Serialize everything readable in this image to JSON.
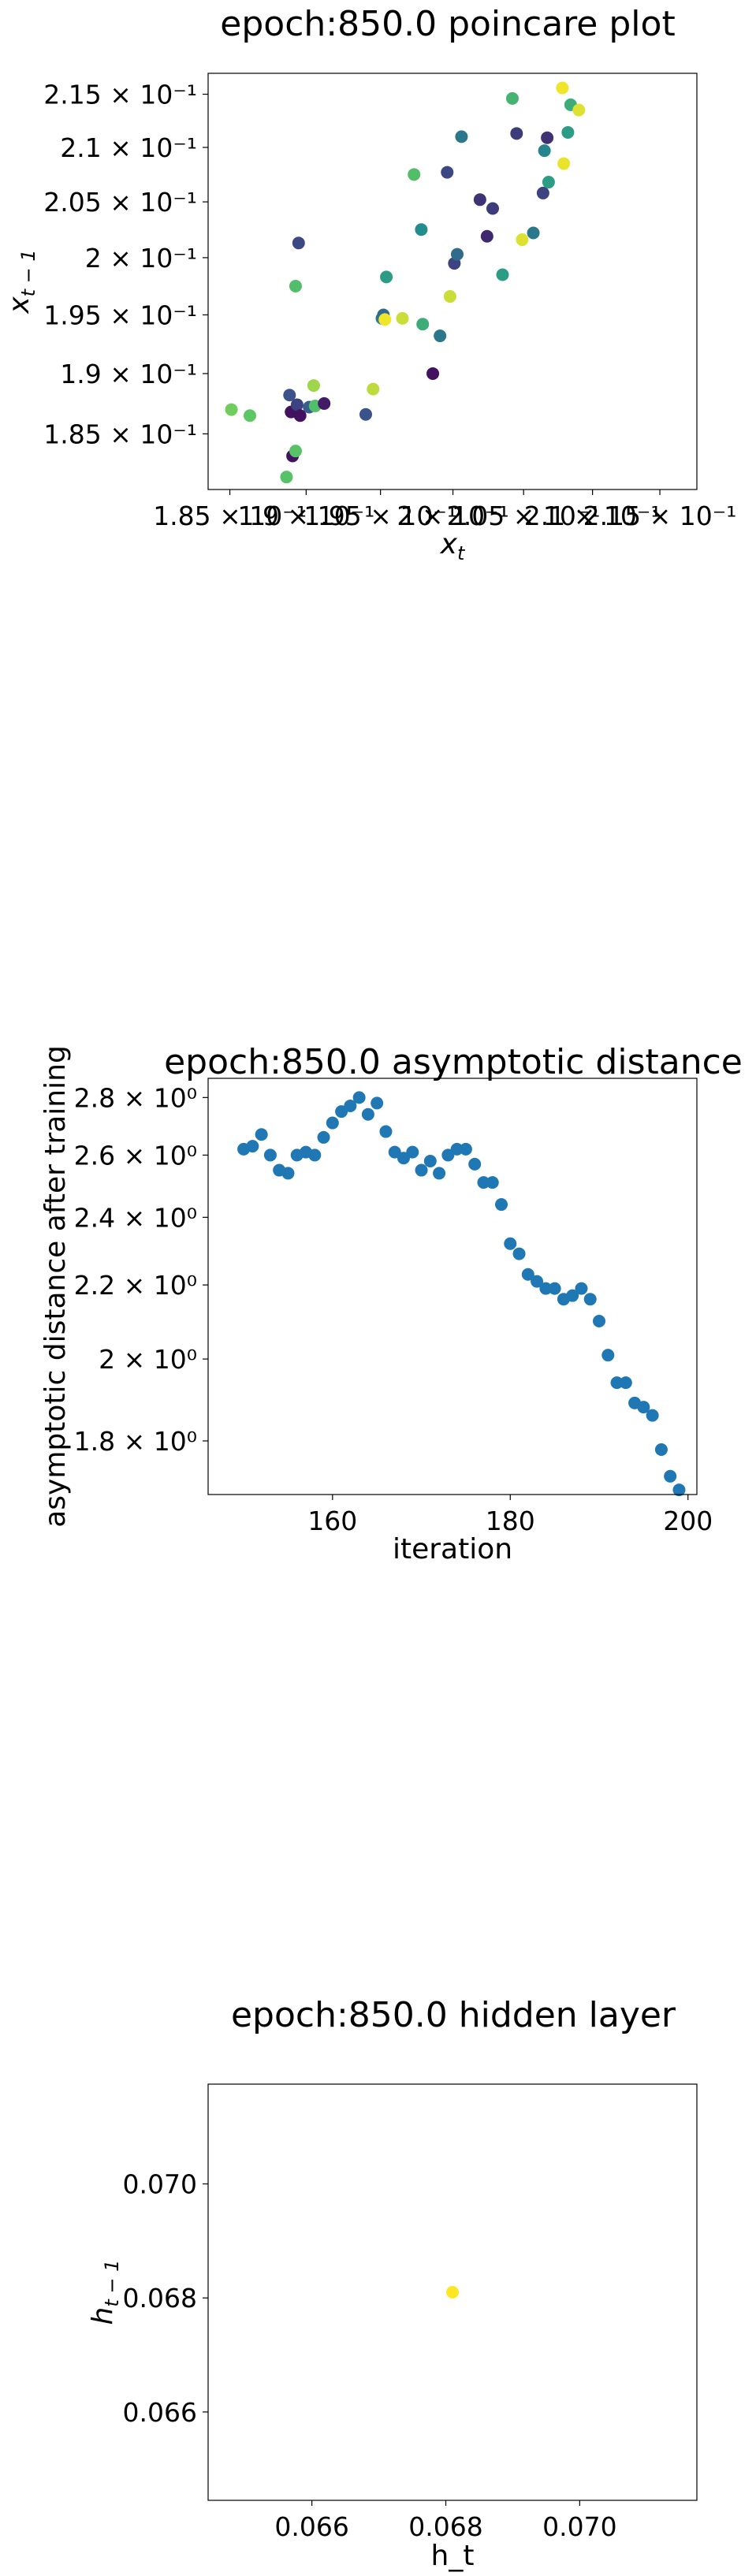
{
  "chart_data": [
    {
      "type": "scatter",
      "title": "epoch:850.0 poincare plot",
      "xlabel": "x_t",
      "ylabel": "x_{t-1}",
      "xscale": "log",
      "yscale": "log",
      "xlim": [
        0.1836,
        0.2178
      ],
      "ylim": [
        0.1805,
        0.217
      ],
      "x_ticks": [
        {
          "value": 0.185,
          "label": "1.85 × 10⁻¹"
        },
        {
          "value": 0.19,
          "label": "1.9 × 10⁻¹"
        },
        {
          "value": 0.195,
          "label": "1.95 × 10⁻¹"
        },
        {
          "value": 0.2,
          "label": "2 × 10⁻¹"
        },
        {
          "value": 0.205,
          "label": "2.05 × 10⁻¹"
        },
        {
          "value": 0.21,
          "label": "2.1 × 10⁻¹"
        },
        {
          "value": 0.215,
          "label": "2.15 × 10⁻¹"
        }
      ],
      "y_ticks": [
        {
          "value": 0.185,
          "label": "1.85 × 10⁻¹"
        },
        {
          "value": 0.19,
          "label": "1.9 × 10⁻¹"
        },
        {
          "value": 0.195,
          "label": "1.95 × 10⁻¹"
        },
        {
          "value": 0.2,
          "label": "2 × 10⁻¹"
        },
        {
          "value": 0.205,
          "label": "2.05 × 10⁻¹"
        },
        {
          "value": 0.21,
          "label": "2.1 × 10⁻¹"
        },
        {
          "value": 0.215,
          "label": "2.15 × 10⁻¹"
        }
      ],
      "colormap": "viridis",
      "points": [
        {
          "x": 0.1851,
          "y": 0.187,
          "c": 0.78
        },
        {
          "x": 0.1863,
          "y": 0.1865,
          "c": 0.74
        },
        {
          "x": 0.1887,
          "y": 0.1815,
          "c": 0.72
        },
        {
          "x": 0.189,
          "y": 0.1868,
          "c": 0.05
        },
        {
          "x": 0.1889,
          "y": 0.1882,
          "c": 0.25
        },
        {
          "x": 0.1891,
          "y": 0.1832,
          "c": 0.05
        },
        {
          "x": 0.1893,
          "y": 0.1836,
          "c": 0.72
        },
        {
          "x": 0.1893,
          "y": 0.1975,
          "c": 0.7
        },
        {
          "x": 0.1895,
          "y": 0.2013,
          "c": 0.22
        },
        {
          "x": 0.1894,
          "y": 0.1874,
          "c": 0.2
        },
        {
          "x": 0.1896,
          "y": 0.1865,
          "c": 0.05
        },
        {
          "x": 0.1902,
          "y": 0.1872,
          "c": 0.3
        },
        {
          "x": 0.1905,
          "y": 0.189,
          "c": 0.85
        },
        {
          "x": 0.1906,
          "y": 0.1873,
          "c": 0.7
        },
        {
          "x": 0.1912,
          "y": 0.1875,
          "c": 0.08
        },
        {
          "x": 0.194,
          "y": 0.1866,
          "c": 0.25
        },
        {
          "x": 0.1945,
          "y": 0.1887,
          "c": 0.9
        },
        {
          "x": 0.1951,
          "y": 0.1947,
          "c": 0.4
        },
        {
          "x": 0.1952,
          "y": 0.195,
          "c": 0.35
        },
        {
          "x": 0.1953,
          "y": 0.1946,
          "c": 0.98
        },
        {
          "x": 0.1954,
          "y": 0.1983,
          "c": 0.55
        },
        {
          "x": 0.1965,
          "y": 0.1947,
          "c": 0.92
        },
        {
          "x": 0.1973,
          "y": 0.2075,
          "c": 0.7
        },
        {
          "x": 0.1978,
          "y": 0.2025,
          "c": 0.48
        },
        {
          "x": 0.1979,
          "y": 0.1942,
          "c": 0.62
        },
        {
          "x": 0.1986,
          "y": 0.19,
          "c": 0.05
        },
        {
          "x": 0.1991,
          "y": 0.1932,
          "c": 0.4
        },
        {
          "x": 0.1996,
          "y": 0.2077,
          "c": 0.22
        },
        {
          "x": 0.1998,
          "y": 0.1966,
          "c": 0.92
        },
        {
          "x": 0.2001,
          "y": 0.1995,
          "c": 0.2
        },
        {
          "x": 0.2003,
          "y": 0.2003,
          "c": 0.35
        },
        {
          "x": 0.2006,
          "y": 0.211,
          "c": 0.4
        },
        {
          "x": 0.2019,
          "y": 0.2052,
          "c": 0.15
        },
        {
          "x": 0.2024,
          "y": 0.2019,
          "c": 0.12
        },
        {
          "x": 0.2028,
          "y": 0.2044,
          "c": 0.18
        },
        {
          "x": 0.2035,
          "y": 0.1985,
          "c": 0.55
        },
        {
          "x": 0.2042,
          "y": 0.2146,
          "c": 0.65
        },
        {
          "x": 0.2045,
          "y": 0.2113,
          "c": 0.18
        },
        {
          "x": 0.2049,
          "y": 0.2016,
          "c": 0.95
        },
        {
          "x": 0.2057,
          "y": 0.2022,
          "c": 0.4
        },
        {
          "x": 0.2064,
          "y": 0.2058,
          "c": 0.2
        },
        {
          "x": 0.2065,
          "y": 0.2097,
          "c": 0.45
        },
        {
          "x": 0.2067,
          "y": 0.2109,
          "c": 0.15
        },
        {
          "x": 0.2068,
          "y": 0.2068,
          "c": 0.55
        },
        {
          "x": 0.2078,
          "y": 0.2156,
          "c": 0.98
        },
        {
          "x": 0.2079,
          "y": 0.2085,
          "c": 0.97
        },
        {
          "x": 0.2082,
          "y": 0.2114,
          "c": 0.55
        },
        {
          "x": 0.2084,
          "y": 0.214,
          "c": 0.62
        },
        {
          "x": 0.209,
          "y": 0.2135,
          "c": 0.95
        }
      ]
    },
    {
      "type": "scatter",
      "title": "epoch:850.0 asymptotic distance",
      "xlabel": "iteration",
      "ylabel": "asymptotic distance after training",
      "yscale": "log",
      "xlim": [
        146,
        201
      ],
      "ylim": [
        1.68,
        2.87
      ],
      "x_ticks": [
        {
          "value": 160,
          "label": "160"
        },
        {
          "value": 180,
          "label": "180"
        },
        {
          "value": 200,
          "label": "200"
        }
      ],
      "y_ticks": [
        {
          "value": 1.8,
          "label": "1.8 × 10⁰"
        },
        {
          "value": 2.0,
          "label": "2 × 10⁰"
        },
        {
          "value": 2.2,
          "label": "2.2 × 10⁰"
        },
        {
          "value": 2.4,
          "label": "2.4 × 10⁰"
        },
        {
          "value": 2.6,
          "label": "2.6 × 10⁰"
        },
        {
          "value": 2.8,
          "label": "2.8 × 10⁰"
        }
      ],
      "color": "#1f77b4",
      "x": [
        150,
        151,
        152,
        153,
        154,
        155,
        156,
        157,
        158,
        159,
        160,
        161,
        162,
        163,
        164,
        165,
        166,
        167,
        168,
        169,
        170,
        171,
        172,
        173,
        174,
        175,
        176,
        177,
        178,
        179,
        180,
        181,
        182,
        183,
        184,
        185,
        186,
        187,
        188,
        189,
        190,
        191,
        192,
        193,
        194,
        195,
        196,
        197,
        198,
        199
      ],
      "y": [
        2.62,
        2.63,
        2.67,
        2.6,
        2.55,
        2.54,
        2.6,
        2.61,
        2.6,
        2.66,
        2.71,
        2.75,
        2.77,
        2.8,
        2.74,
        2.78,
        2.68,
        2.61,
        2.59,
        2.61,
        2.55,
        2.58,
        2.54,
        2.6,
        2.62,
        2.62,
        2.57,
        2.51,
        2.51,
        2.44,
        2.32,
        2.29,
        2.23,
        2.21,
        2.19,
        2.19,
        2.16,
        2.17,
        2.19,
        2.16,
        2.1,
        2.01,
        1.94,
        1.94,
        1.89,
        1.88,
        1.86,
        1.78,
        1.72,
        1.69
      ]
    },
    {
      "type": "scatter",
      "title": "epoch:850.0 hidden layer",
      "xlabel": "h_t",
      "ylabel": "h_{t-1}",
      "xlim": [
        0.06445,
        0.07175
      ],
      "ylim": [
        0.06445,
        0.07175
      ],
      "x_ticks": [
        {
          "value": 0.066,
          "label": "0.066"
        },
        {
          "value": 0.068,
          "label": "0.068"
        },
        {
          "value": 0.07,
          "label": "0.070"
        }
      ],
      "y_ticks": [
        {
          "value": 0.066,
          "label": "0.066"
        },
        {
          "value": 0.068,
          "label": "0.068"
        },
        {
          "value": 0.07,
          "label": "0.070"
        }
      ],
      "color": "#fde725",
      "points": [
        {
          "x": 0.0681,
          "y": 0.0681
        }
      ]
    }
  ]
}
